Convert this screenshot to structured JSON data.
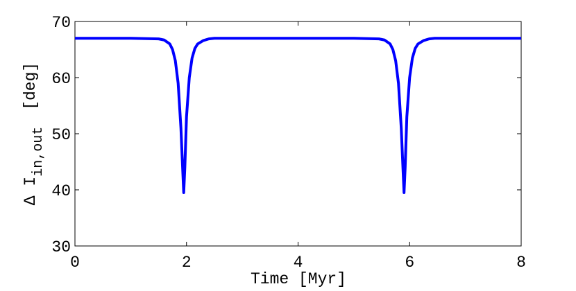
{
  "chart_data": {
    "type": "line",
    "xlabel": "Time [Myr]",
    "ylabel": {
      "text": "Δ I",
      "subscript": "in,out",
      "suffix": "[deg]"
    },
    "x": [
      0,
      1.0,
      1.5,
      1.6,
      1.7,
      1.75,
      1.8,
      1.85,
      1.9,
      1.93,
      1.95,
      1.97,
      2.0,
      2.05,
      2.1,
      2.15,
      2.2,
      2.3,
      2.4,
      2.5,
      3.0,
      4.0,
      5.0,
      5.45,
      5.55,
      5.65,
      5.7,
      5.75,
      5.8,
      5.85,
      5.88,
      5.9,
      5.92,
      5.95,
      6.0,
      6.05,
      6.1,
      6.15,
      6.25,
      6.35,
      6.45,
      7.0,
      8.0
    ],
    "series": [
      {
        "color": "#0000ff",
        "values": [
          67,
          67,
          66.9,
          66.7,
          66.0,
          65.0,
          63.0,
          59.0,
          51.0,
          44.0,
          39.5,
          44.0,
          53.0,
          60.0,
          63.5,
          65.2,
          66.0,
          66.6,
          66.9,
          67,
          67,
          67,
          67,
          66.9,
          66.7,
          66.0,
          65.0,
          63.0,
          59.0,
          51.0,
          44.0,
          39.5,
          44.0,
          53.0,
          60.0,
          63.5,
          65.2,
          66.0,
          66.6,
          66.9,
          67,
          67,
          67
        ]
      }
    ],
    "xlim": [
      0,
      8
    ],
    "xticks": [
      0,
      2,
      4,
      6,
      8
    ],
    "ylim": [
      30,
      70
    ],
    "yticks": [
      30,
      40,
      50,
      60,
      70
    ]
  }
}
